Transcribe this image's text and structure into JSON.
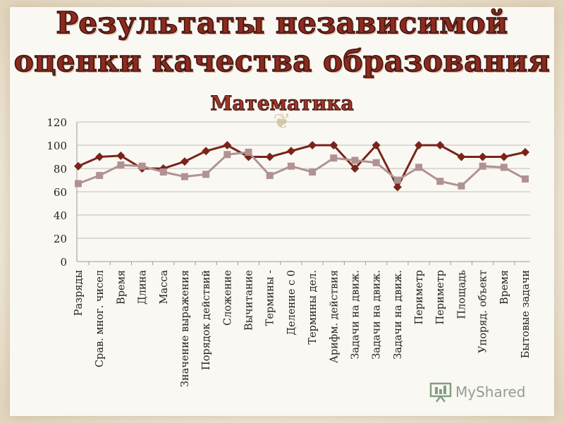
{
  "slide": {
    "title_line1": "Результаты независимой",
    "title_line2": "оценки качества образования",
    "subtitle": "Математика"
  },
  "watermark": {
    "text": "MyShared"
  },
  "colors": {
    "title": "#8c2a20",
    "series1": "#7a231b",
    "series2": "#b09292",
    "grid": "#bdbdbd"
  },
  "chart_data": {
    "type": "line",
    "title": "",
    "xlabel": "",
    "ylabel": "",
    "ylim": [
      0,
      120
    ],
    "yticks": [
      0,
      20,
      40,
      60,
      80,
      100,
      120
    ],
    "grid": true,
    "categories": [
      "Разряды",
      "Срав. мног. чисел",
      "Время",
      "Длина",
      "Масса",
      "Значение выражения",
      "Порядок действий",
      "Сложение",
      "Вычитание",
      "Термины -",
      "Деление с 0",
      "Термины дел.",
      "Арифм. действия",
      "Задачи на движ.",
      "Задачи на движ.",
      "Задачи на движ.",
      "Периметр",
      "Периметр",
      "Площадь",
      "Упоряд. объект",
      "Время",
      "Бытовые задачи"
    ],
    "series": [
      {
        "marker": "diamond",
        "values": [
          82,
          90,
          91,
          80,
          80,
          86,
          95,
          100,
          90,
          90,
          95,
          100,
          100,
          80,
          100,
          64,
          100,
          100,
          90,
          90,
          90,
          94
        ]
      },
      {
        "marker": "square",
        "values": [
          67,
          74,
          83,
          82,
          77,
          73,
          75,
          92,
          94,
          74,
          82,
          77,
          89,
          87,
          85,
          70,
          81,
          69,
          65,
          82,
          81,
          71
        ]
      }
    ]
  }
}
